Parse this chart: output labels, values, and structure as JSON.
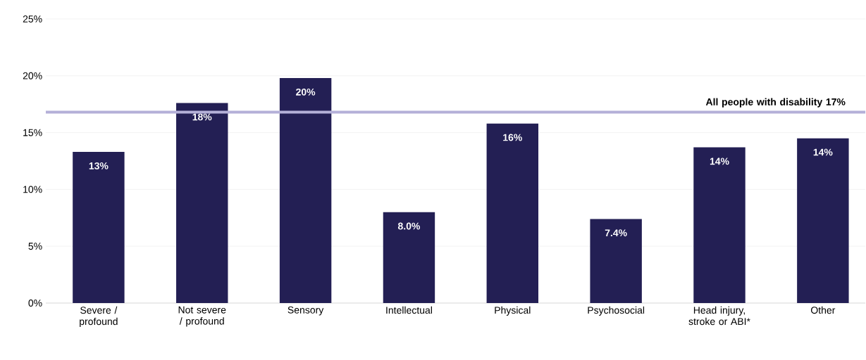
{
  "chart_data": {
    "type": "bar",
    "categories": [
      "Severe / profound",
      "Not severe / profound",
      "Sensory",
      "Intellectual",
      "Physical",
      "Psychosocial",
      "Head injury, stroke or ABI*",
      "Other"
    ],
    "values": [
      13.3,
      17.6,
      19.8,
      8.0,
      15.8,
      7.4,
      13.7,
      14.5
    ],
    "value_labels": [
      "13%",
      "18%",
      "20%",
      "8.0%",
      "16%",
      "7.4%",
      "14%",
      "14%"
    ],
    "color": "#231f54",
    "ylim": [
      0,
      25
    ],
    "yticks": [
      {
        "value": 0,
        "label": "0%"
      },
      {
        "value": 5,
        "label": "5%"
      },
      {
        "value": 10,
        "label": "10%"
      },
      {
        "value": 15,
        "label": "15%"
      },
      {
        "value": 20,
        "label": "20%"
      },
      {
        "value": 25,
        "label": "25%"
      }
    ],
    "ref_lines": [
      {
        "axis": "y",
        "value": 16.8,
        "label": "All people with disability 17%",
        "color": "#b4b0d8"
      }
    ],
    "grid": "y"
  }
}
